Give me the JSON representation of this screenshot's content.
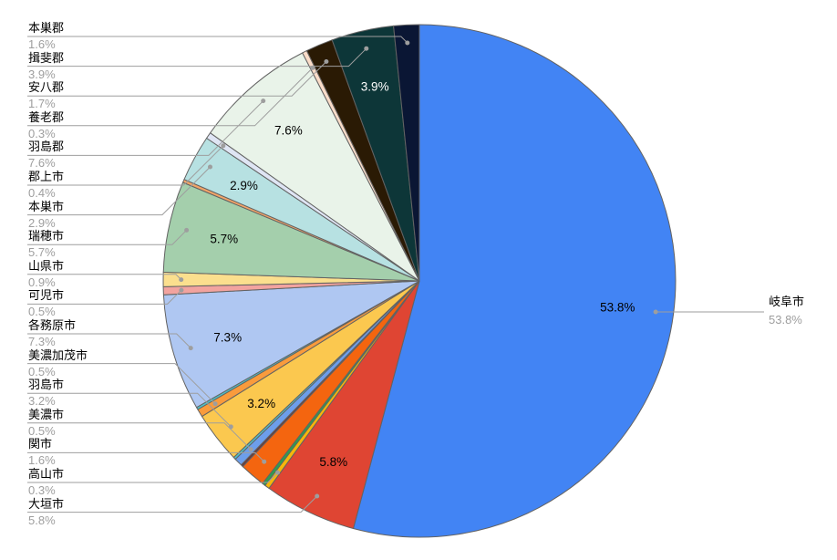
{
  "chart_data": {
    "type": "pie",
    "unit": "%",
    "legend_position": "labeled",
    "start_angle_deg": 0,
    "direction": "clockwise",
    "background": "#ffffff",
    "slice_stroke": "#636363",
    "leader_line_color": "#9e9e9e",
    "label_color": "#000000",
    "percent_color": "#9e9e9e",
    "slices": [
      {
        "label": "岐阜市",
        "value": 53.8,
        "pct": "53.8%",
        "color": "#4284F4",
        "labeled": true
      },
      {
        "label": "大垣市",
        "value": 5.8,
        "pct": "5.8%",
        "color": "#DF4533",
        "labeled": true
      },
      {
        "label": "高山市",
        "value": 0.3,
        "pct": "0.3%",
        "color": "#F6B60A",
        "labeled": true
      },
      {
        "label": "",
        "value": 0.2,
        "pct": "",
        "color": "#2E9E4F",
        "labeled": false
      },
      {
        "label": "関市",
        "value": 1.6,
        "pct": "1.6%",
        "color": "#F4650F",
        "labeled": true
      },
      {
        "label": "",
        "value": 0.15,
        "pct": "",
        "color": "#693B3B",
        "labeled": false
      },
      {
        "label": "美濃市",
        "value": 0.5,
        "pct": "0.5%",
        "color": "#6D9EEB",
        "labeled": true
      },
      {
        "label": "",
        "value": 0.15,
        "pct": "",
        "color": "#4FC3CB",
        "labeled": false
      },
      {
        "label": "羽島市",
        "value": 3.2,
        "pct": "3.2%",
        "color": "#FBC84F",
        "labeled": true
      },
      {
        "label": "美濃加茂市",
        "value": 0.5,
        "pct": "0.5%",
        "color": "#F99B3C",
        "labeled": true
      },
      {
        "label": "",
        "value": 0.15,
        "pct": "",
        "color": "#4FC0C6",
        "labeled": false
      },
      {
        "label": "各務原市",
        "value": 7.3,
        "pct": "7.3%",
        "color": "#AFC7F2",
        "labeled": true
      },
      {
        "label": "可児市",
        "value": 0.5,
        "pct": "0.5%",
        "color": "#F2A39F",
        "labeled": true
      },
      {
        "label": "山県市",
        "value": 0.9,
        "pct": "0.9%",
        "color": "#FBDF8E",
        "labeled": true
      },
      {
        "label": "瑞穂市",
        "value": 5.7,
        "pct": "5.7%",
        "color": "#A4CFAC",
        "labeled": true
      },
      {
        "label": "",
        "value": 0.2,
        "pct": "",
        "color": "#F2A468",
        "labeled": false
      },
      {
        "label": "本巣市",
        "value": 2.9,
        "pct": "2.9%",
        "color": "#B7E1E2",
        "labeled": true
      },
      {
        "label": "郡上市",
        "value": 0.4,
        "pct": "0.4%",
        "color": "#DFE5F4",
        "labeled": true
      },
      {
        "label": "羽島郡",
        "value": 7.6,
        "pct": "7.6%",
        "color": "#E9F3E9",
        "labeled": true
      },
      {
        "label": "養老郡",
        "value": 0.3,
        "pct": "0.3%",
        "color": "#FADCC8",
        "labeled": true
      },
      {
        "label": "安八郡",
        "value": 1.7,
        "pct": "1.7%",
        "color": "#2A1A04",
        "labeled": true
      },
      {
        "label": "揖斐郡",
        "value": 3.9,
        "pct": "3.9%",
        "color": "#0D3638",
        "labeled": true,
        "text_color": "#ffffff"
      },
      {
        "label": "本巣郡",
        "value": 1.6,
        "pct": "1.6%",
        "color": "#0A1634",
        "labeled": true
      }
    ]
  }
}
